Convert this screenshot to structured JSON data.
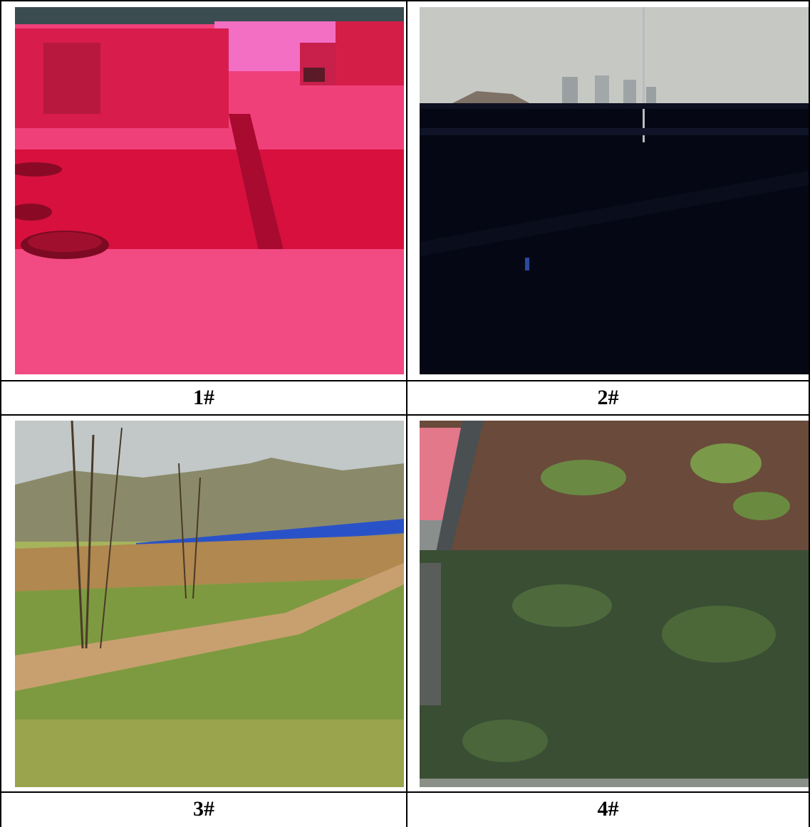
{
  "figure": {
    "panels": [
      {
        "label": "1#"
      },
      {
        "label": "2#"
      },
      {
        "label": "3#"
      },
      {
        "label": "4#"
      }
    ]
  }
}
